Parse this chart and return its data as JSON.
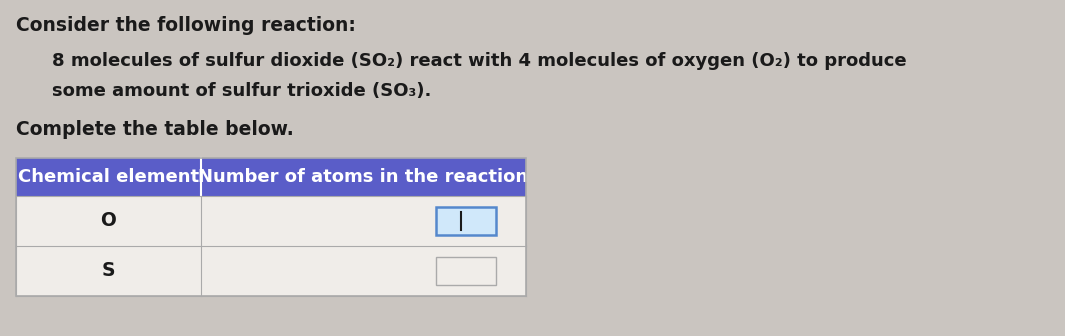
{
  "background_color": "#cac5c0",
  "title_line": "Consider the following reaction:",
  "body_line1": "8 molecules of sulfur dioxide (SO₂) react with 4 molecules of oxygen (O₂) to produce",
  "body_line2": "some amount of sulfur trioxide (SO₃).",
  "complete_line": "Complete the table below.",
  "table_header_col1": "Chemical element",
  "table_header_col2": "Number of atoms in the reaction",
  "table_header_bg": "#5a5dc8",
  "table_header_text_color": "#ffffff",
  "table_row1_col1": "O",
  "table_row2_col1": "S",
  "table_row_bg": "#f0ede9",
  "table_border_color": "#aaaaaa",
  "input_box1_color": "#d0e8fa",
  "input_box1_border": "#5588cc",
  "input_box2_color": "#f0ede9",
  "input_box2_border": "#aaaaaa",
  "text_color": "#1a1a1a",
  "font_size_title": 13.5,
  "font_size_body": 13.0,
  "font_size_table_header": 13.0,
  "font_size_table_body": 13.5
}
